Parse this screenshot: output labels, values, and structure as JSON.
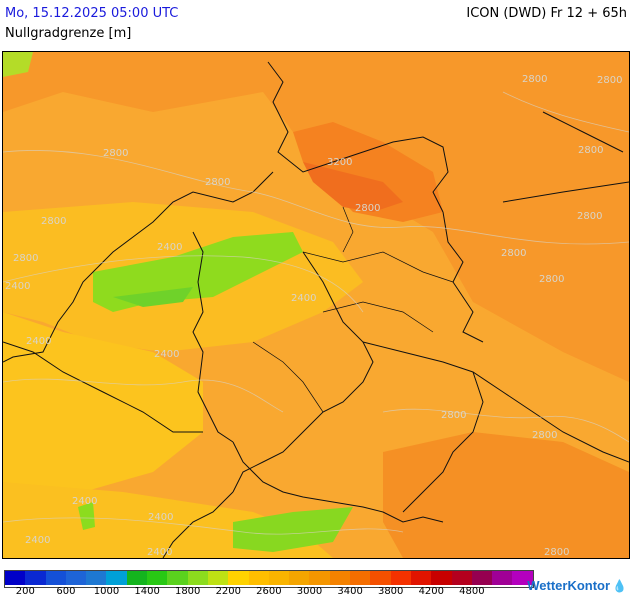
{
  "header": {
    "datetime": "Mo, 15.12.2025 05:00 UTC",
    "model": "ICON (DWD) Fr 12 + 65h",
    "parameter": "Nullgradgrenze [m]"
  },
  "map": {
    "region": "Central Europe",
    "contour_labels": [
      "2800",
      "2800",
      "2800",
      "3200",
      "2800",
      "2800",
      "2800",
      "2800",
      "2800",
      "2800",
      "2400",
      "2400",
      "2400",
      "2400",
      "2400",
      "2800",
      "2800",
      "2400",
      "2400",
      "2400",
      "2400",
      "2800",
      "2800",
      "2800"
    ]
  },
  "legend": {
    "colors": [
      "#0000c8",
      "#0a28d2",
      "#1450d7",
      "#1e64d7",
      "#1e78d2",
      "#00a0d7",
      "#14b41e",
      "#28c814",
      "#5ad21e",
      "#8cdc1e",
      "#bee114",
      "#ffd200",
      "#ffbe00",
      "#fab400",
      "#f5a500",
      "#f59600",
      "#f58200",
      "#f56e00",
      "#f55000",
      "#f53200",
      "#e11400",
      "#c80000",
      "#b4001e",
      "#960050",
      "#a00096",
      "#b400be"
    ],
    "labels": [
      "200",
      "600",
      "1000",
      "1400",
      "1800",
      "2200",
      "2600",
      "3000",
      "3400",
      "3800",
      "4200",
      "4800"
    ],
    "unit": "m"
  },
  "brand": {
    "name": "WetterKontor",
    "icon": "raindrops-icon"
  }
}
